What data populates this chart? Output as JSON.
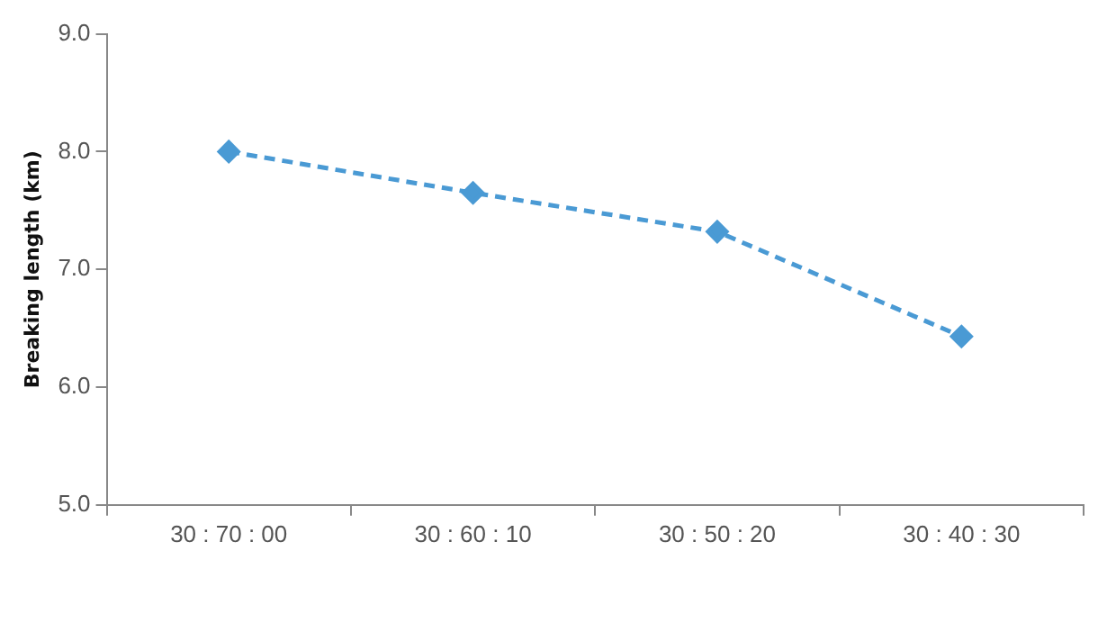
{
  "chart_data": {
    "type": "line",
    "ylabel": "Breaking length (km)",
    "categories": [
      "30 : 70 : 00",
      "30 : 60 : 10",
      "30 : 50 : 20",
      "30 : 40 : 30"
    ],
    "series": [
      {
        "color": "#4a9ad4",
        "values": [
          8.0,
          7.65,
          7.32,
          6.43
        ]
      }
    ],
    "ylim": [
      5,
      9
    ],
    "yticks": [
      {
        "value": 5,
        "label": "5.0"
      },
      {
        "value": 6,
        "label": "6.0"
      },
      {
        "value": 7,
        "label": "7.0"
      },
      {
        "value": 8,
        "label": "8.0"
      },
      {
        "value": 9,
        "label": "9.0"
      }
    ],
    "grid": false,
    "legend": false,
    "marker": "diamond",
    "line_style": "dashed"
  }
}
